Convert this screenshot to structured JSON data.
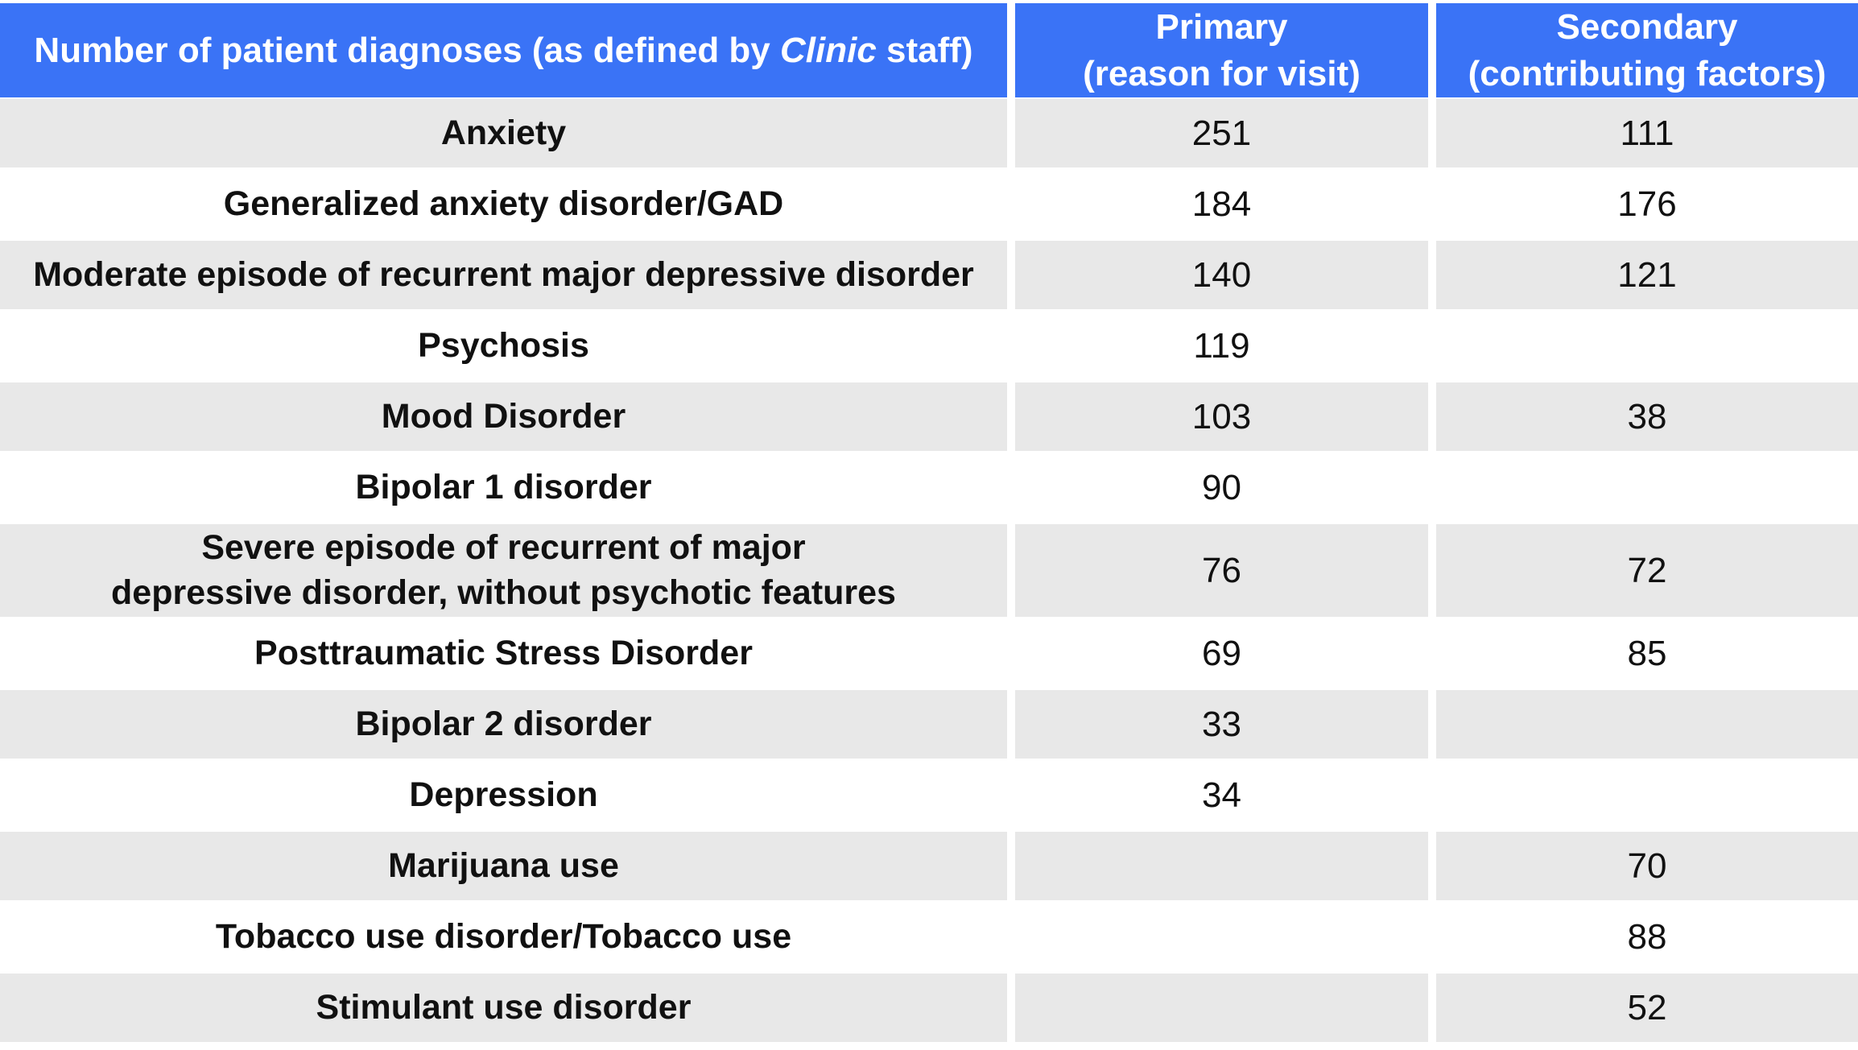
{
  "chart_data": {
    "type": "table",
    "header": {
      "col1_parts": [
        "Number of patient diagnoses (as defined by ",
        "Clinic",
        " staff)"
      ],
      "col2_lines": [
        "Primary",
        "(reason for visit)"
      ],
      "col3_lines": [
        "Secondary",
        "(contributing factors)"
      ]
    },
    "rows": [
      {
        "diagnosis": [
          "Anxiety"
        ],
        "primary": "251",
        "secondary": "111"
      },
      {
        "diagnosis": [
          "Generalized anxiety disorder/GAD"
        ],
        "primary": "184",
        "secondary": "176"
      },
      {
        "diagnosis": [
          "Moderate episode of recurrent major depressive disorder"
        ],
        "primary": "140",
        "secondary": "121"
      },
      {
        "diagnosis": [
          "Psychosis"
        ],
        "primary": "119",
        "secondary": ""
      },
      {
        "diagnosis": [
          "Mood Disorder"
        ],
        "primary": "103",
        "secondary": "38"
      },
      {
        "diagnosis": [
          "Bipolar 1 disorder"
        ],
        "primary": "90",
        "secondary": ""
      },
      {
        "diagnosis": [
          "Severe episode of recurrent of major",
          "depressive disorder, without psychotic features"
        ],
        "primary": "76",
        "secondary": "72"
      },
      {
        "diagnosis": [
          "Posttraumatic Stress Disorder"
        ],
        "primary": "69",
        "secondary": "85"
      },
      {
        "diagnosis": [
          "Bipolar 2 disorder"
        ],
        "primary": "33",
        "secondary": ""
      },
      {
        "diagnosis": [
          "Depression"
        ],
        "primary": "34",
        "secondary": ""
      },
      {
        "diagnosis": [
          "Marijuana use"
        ],
        "primary": "",
        "secondary": "70"
      },
      {
        "diagnosis": [
          "Tobacco use disorder/Tobacco use"
        ],
        "primary": "",
        "secondary": "88"
      },
      {
        "diagnosis": [
          "Stimulant use disorder"
        ],
        "primary": "",
        "secondary": "52"
      }
    ]
  },
  "colors": {
    "header_bg": "#3a73f6",
    "row_shaded": "#e8e8e8",
    "row_plain": "#ffffff"
  }
}
